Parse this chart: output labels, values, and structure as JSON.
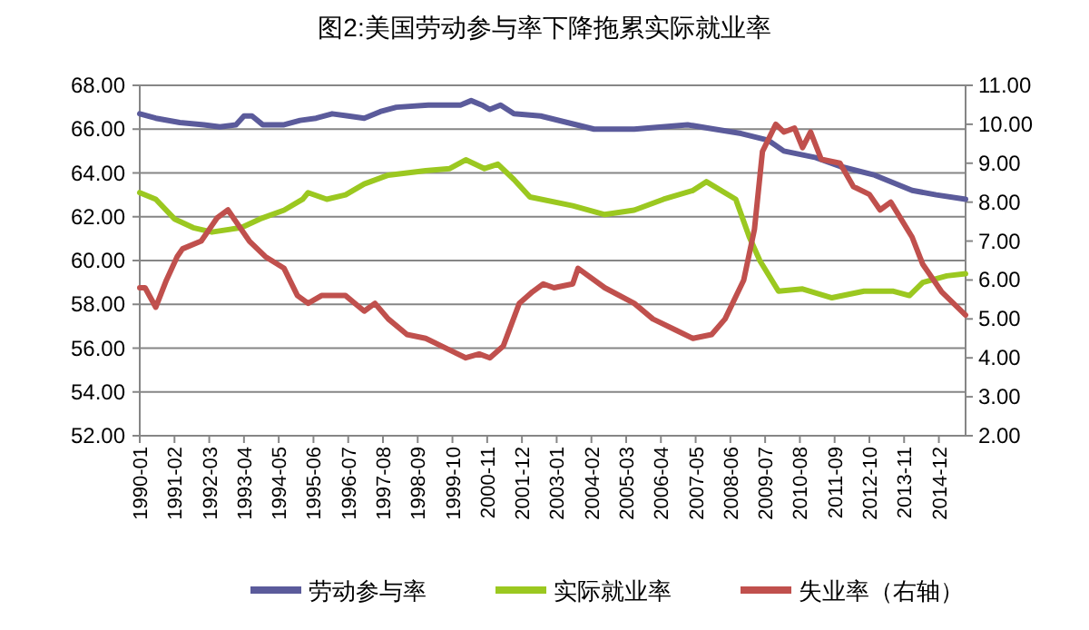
{
  "chart_data": {
    "type": "line",
    "title": "图2:美国劳动参与率下降拖累实际就业率",
    "xlim": [
      "1990-01",
      "2015-10"
    ],
    "xticks": [
      "1990-01",
      "1991-02",
      "1992-03",
      "1993-04",
      "1994-05",
      "1995-06",
      "1996-07",
      "1997-08",
      "1998-09",
      "1999-10",
      "2000-11",
      "2001-12",
      "2003-01",
      "2004-02",
      "2005-03",
      "2006-04",
      "2007-05",
      "2008-06",
      "2009-07",
      "2010-08",
      "2011-09",
      "2012-10",
      "2013-11",
      "2014-12"
    ],
    "ylim": [
      52,
      68
    ],
    "yticks": [
      {
        "value": 52,
        "label": "52.00"
      },
      {
        "value": 54,
        "label": "54.00"
      },
      {
        "value": 56,
        "label": "56.00"
      },
      {
        "value": 58,
        "label": "58.00"
      },
      {
        "value": 60,
        "label": "60.00"
      },
      {
        "value": 62,
        "label": "62.00"
      },
      {
        "value": 64,
        "label": "64.00"
      },
      {
        "value": 66,
        "label": "66.00"
      },
      {
        "value": 68,
        "label": "68.00"
      }
    ],
    "y2lim": [
      2,
      11
    ],
    "y2ticks": [
      {
        "value": 2,
        "label": "2.00"
      },
      {
        "value": 3,
        "label": "3.00"
      },
      {
        "value": 4,
        "label": "4.00"
      },
      {
        "value": 5,
        "label": "5.00"
      },
      {
        "value": 6,
        "label": "6.00"
      },
      {
        "value": 7,
        "label": "7.00"
      },
      {
        "value": 8,
        "label": "8.00"
      },
      {
        "value": 9,
        "label": "9.00"
      },
      {
        "value": 10,
        "label": "10.00"
      },
      {
        "value": 11,
        "label": "11.00"
      }
    ],
    "grid": "y",
    "legend": "bottom",
    "marker": "none",
    "line_style": "solid",
    "series": [
      {
        "name": "劳动参与率",
        "color": "#5b5b9b",
        "x": [
          "1990-01",
          "1990-07",
          "1991-04",
          "1992-01",
          "1992-07",
          "1993-01",
          "1993-04",
          "1993-07",
          "1993-11",
          "1994-07",
          "1995-01",
          "1995-07",
          "1996-01",
          "1996-07",
          "1997-01",
          "1997-07",
          "1998-01",
          "1999-01",
          "2000-01",
          "2000-05",
          "2000-09",
          "2000-12",
          "2001-04",
          "2001-09",
          "2002-07",
          "2003-05",
          "2004-03",
          "2005-06",
          "2007-02",
          "2007-12",
          "2008-10",
          "2009-08",
          "2010-02",
          "2011-02",
          "2011-11",
          "2012-12",
          "2014-02",
          "2014-11",
          "2015-10"
        ],
        "values": [
          66.7,
          66.5,
          66.3,
          66.2,
          66.1,
          66.2,
          66.6,
          66.6,
          66.2,
          66.2,
          66.4,
          66.5,
          66.7,
          66.6,
          66.5,
          66.8,
          67.0,
          67.1,
          67.1,
          67.3,
          67.1,
          66.9,
          67.1,
          66.7,
          66.6,
          66.3,
          66.0,
          66.0,
          66.2,
          66.0,
          65.8,
          65.5,
          65.0,
          64.7,
          64.3,
          63.9,
          63.2,
          63.0,
          62.8
        ]
      },
      {
        "name": "实际就业率",
        "color": "#9bc820",
        "x": [
          "1990-01",
          "1990-07",
          "1991-02",
          "1991-09",
          "1992-04",
          "1993-03",
          "1993-10",
          "1994-07",
          "1995-02",
          "1995-04",
          "1995-11",
          "1996-06",
          "1997-01",
          "1997-10",
          "1998-12",
          "1999-09",
          "2000-03",
          "2000-10",
          "2001-03",
          "2001-09",
          "2002-03",
          "2003-07",
          "2004-07",
          "2005-06",
          "2006-05",
          "2007-04",
          "2007-09",
          "2008-08",
          "2009-01",
          "2009-05",
          "2009-12",
          "2010-09",
          "2011-08",
          "2012-08",
          "2013-07",
          "2014-01",
          "2014-06",
          "2015-03",
          "2015-10"
        ],
        "values": [
          63.1,
          62.8,
          61.9,
          61.5,
          61.3,
          61.5,
          61.9,
          62.3,
          62.8,
          63.1,
          62.8,
          63.0,
          63.5,
          63.9,
          64.1,
          64.2,
          64.6,
          64.2,
          64.4,
          63.7,
          62.9,
          62.5,
          62.1,
          62.3,
          62.8,
          63.2,
          63.6,
          62.8,
          61.1,
          60.0,
          58.6,
          58.7,
          58.3,
          58.6,
          58.6,
          58.4,
          59.0,
          59.3,
          59.4
        ]
      },
      {
        "name": "失业率（右轴）",
        "color": "#c0504d",
        "axis": "y2",
        "x": [
          "1990-01",
          "1990-03",
          "1990-07",
          "1990-11",
          "1991-03",
          "1991-05",
          "1991-12",
          "1992-04",
          "1992-06",
          "1992-10",
          "1993-01",
          "1993-06",
          "1993-12",
          "1994-07",
          "1994-12",
          "1995-04",
          "1995-09",
          "1996-06",
          "1997-01",
          "1997-05",
          "1997-10",
          "1998-05",
          "1998-12",
          "1999-09",
          "2000-03",
          "2000-08",
          "2000-12",
          "2001-05",
          "2001-11",
          "2002-04",
          "2002-08",
          "2002-12",
          "2003-07",
          "2003-09",
          "2004-07",
          "2005-06",
          "2006-01",
          "2006-10",
          "2007-04",
          "2007-11",
          "2008-04",
          "2008-11",
          "2009-03",
          "2009-06",
          "2009-11",
          "2010-02",
          "2010-06",
          "2010-09",
          "2010-12",
          "2011-04",
          "2011-11",
          "2012-04",
          "2012-10",
          "2013-02",
          "2013-06",
          "2014-02",
          "2014-06",
          "2015-01",
          "2015-10"
        ],
        "values": [
          5.8,
          5.8,
          5.3,
          6.0,
          6.6,
          6.8,
          7.0,
          7.4,
          7.6,
          7.8,
          7.5,
          7.0,
          6.6,
          6.3,
          5.6,
          5.4,
          5.6,
          5.6,
          5.2,
          5.4,
          5.0,
          4.6,
          4.5,
          4.2,
          4.0,
          4.1,
          4.0,
          4.3,
          5.4,
          5.7,
          5.9,
          5.8,
          5.9,
          6.3,
          5.8,
          5.4,
          5.0,
          4.7,
          4.5,
          4.6,
          5.0,
          6.0,
          7.3,
          9.3,
          10.0,
          9.8,
          9.9,
          9.4,
          9.8,
          9.1,
          9.0,
          8.4,
          8.2,
          7.8,
          8.0,
          7.1,
          6.4,
          5.7,
          5.1
        ]
      }
    ]
  }
}
